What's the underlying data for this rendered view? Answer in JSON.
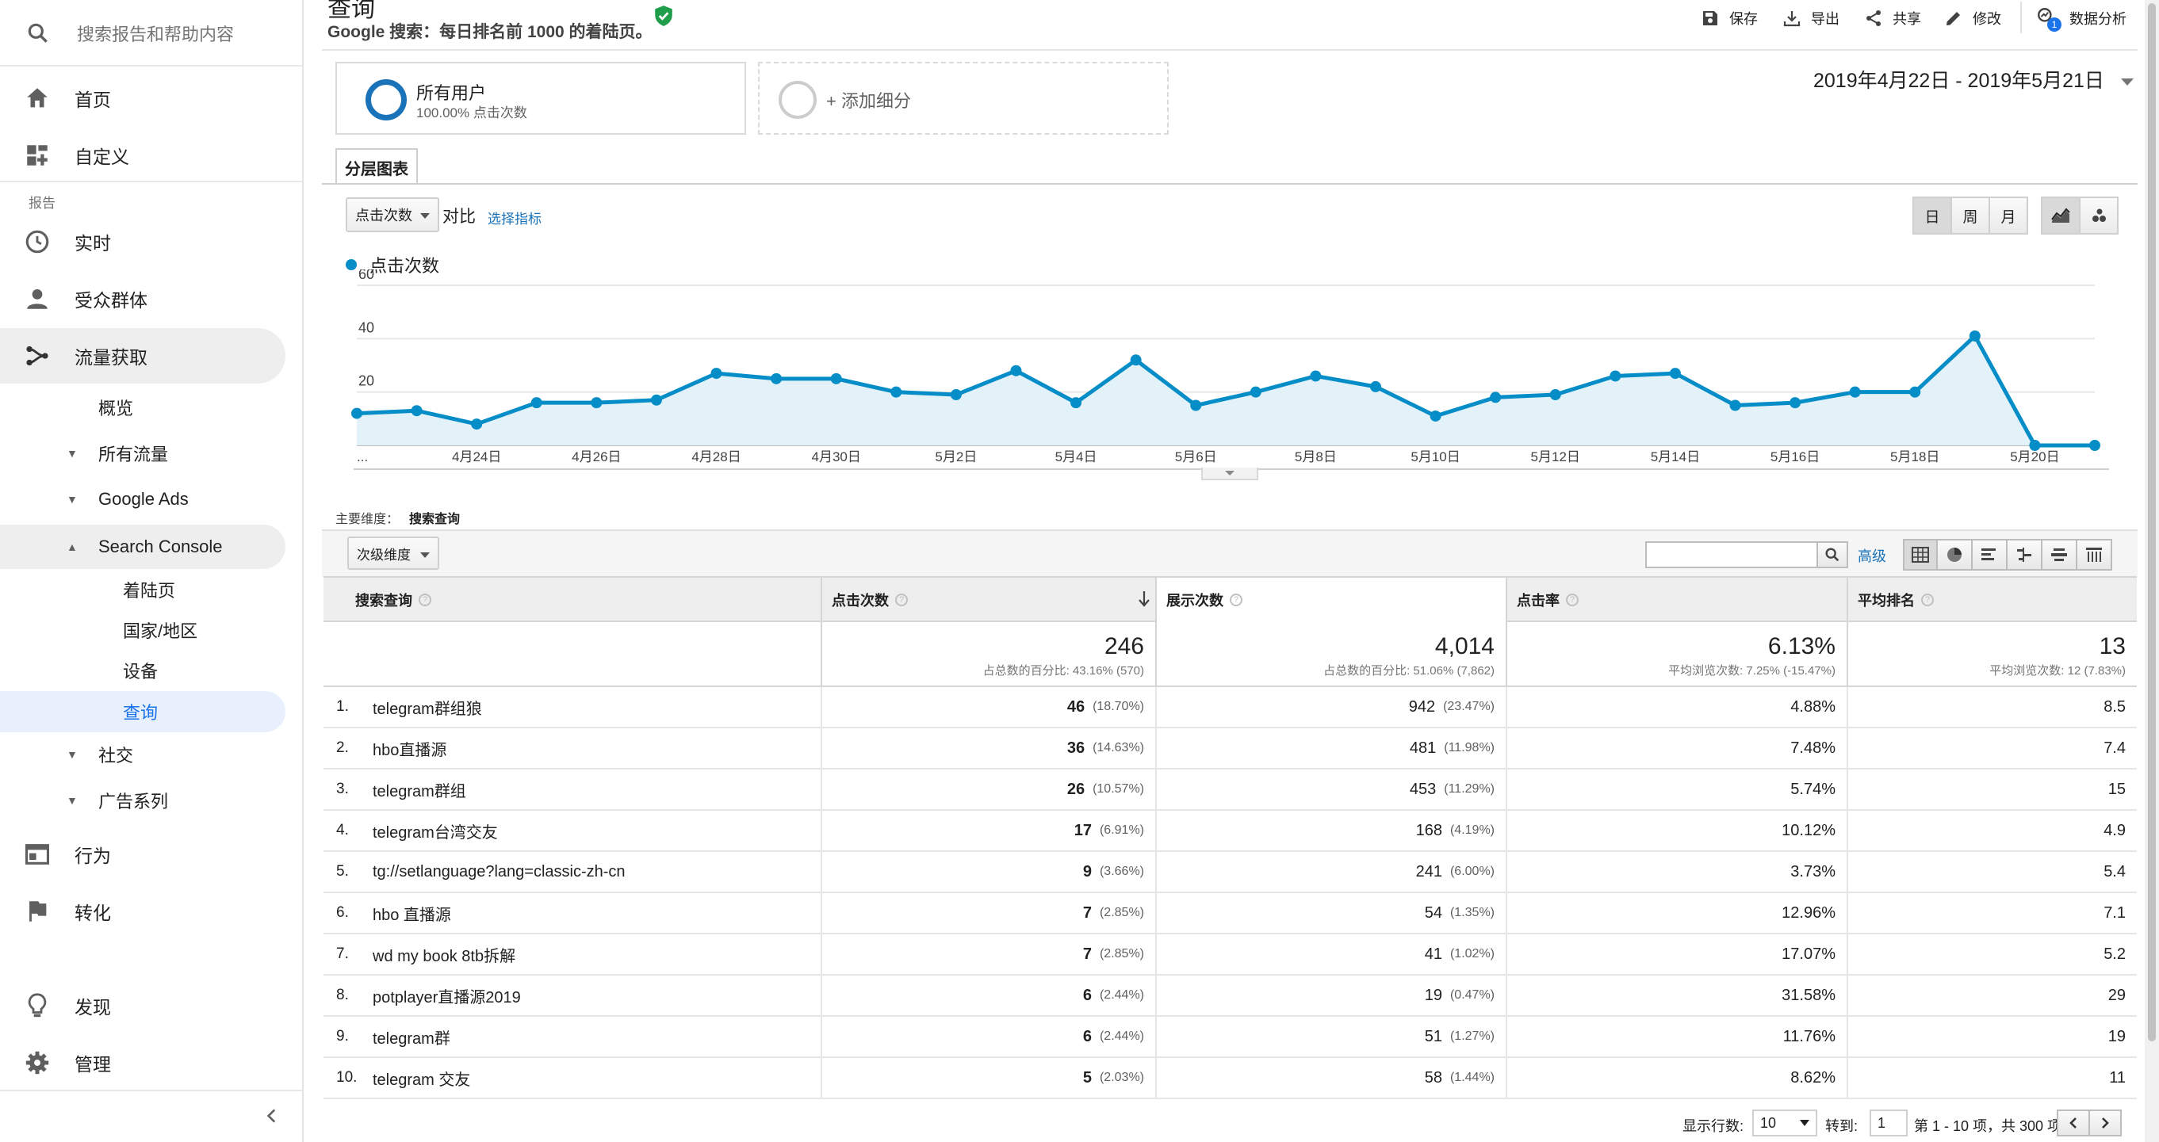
{
  "sidebar": {
    "search_placeholder": "搜索报告和帮助内容",
    "section_label": "报告",
    "nav": [
      {
        "label": "首页",
        "icon": "home-icon"
      },
      {
        "label": "自定义",
        "icon": "dashboard-add-icon"
      },
      {
        "label": "实时",
        "icon": "clock-icon"
      },
      {
        "label": "受众群体",
        "icon": "person-icon"
      },
      {
        "label": "流量获取",
        "icon": "acquisition-icon"
      },
      {
        "label": "行为",
        "icon": "behavior-icon"
      },
      {
        "label": "转化",
        "icon": "flag-icon"
      },
      {
        "label": "发现",
        "icon": "lightbulb-icon"
      },
      {
        "label": "管理",
        "icon": "gear-icon"
      }
    ],
    "acq_sub": {
      "overview": "概览",
      "all_traffic": "所有流量",
      "google_ads": "Google Ads",
      "search_console": "Search Console",
      "sc_items": [
        "着陆页",
        "国家/地区",
        "设备",
        "查询"
      ],
      "social": "社交",
      "campaigns": "广告系列"
    },
    "collapse_icon": "chevron-left-icon"
  },
  "header": {
    "title": "查询",
    "subtitle": "Google 搜索：每日排名前 1000 的着陆页。",
    "verified_icon": "check-shield-icon",
    "toolbar": {
      "save": "保存",
      "export": "导出",
      "share": "共享",
      "edit": "修改",
      "insights": "数据分析",
      "insights_badge": "1"
    }
  },
  "segments": {
    "all_users": "所有用户",
    "all_users_sub": "100.00% 点击次数",
    "add": "+ 添加细分"
  },
  "date_range": "2019年4月22日 - 2019年5月21日",
  "explorer": {
    "tab": "分层图表",
    "metric_select": "点击次数",
    "vs": "对比",
    "select_metric": "选择指标",
    "granularity": [
      "日",
      "周",
      "月"
    ],
    "legend": "点击次数"
  },
  "chart_data": {
    "type": "area",
    "series": [
      {
        "name": "点击次数",
        "values": [
          12,
          13,
          8,
          16,
          16,
          17,
          27,
          25,
          25,
          20,
          19,
          28,
          16,
          32,
          15,
          20,
          26,
          22,
          11,
          18,
          19,
          26,
          27,
          15,
          16,
          20,
          20,
          41,
          0,
          0
        ]
      }
    ],
    "x_tick_labels": [
      "...",
      "4月24日",
      "4月26日",
      "4月28日",
      "4月30日",
      "5月2日",
      "5月4日",
      "5月6日",
      "5月8日",
      "5月10日",
      "5月12日",
      "5月14日",
      "5月16日",
      "5月18日",
      "5月20日"
    ],
    "y_ticks": [
      20,
      40,
      60
    ],
    "ylim": [
      0,
      60
    ],
    "grid": true,
    "color": "#058dc7"
  },
  "dimension": {
    "primary_label": "主要维度：",
    "primary_value": "搜索查询",
    "secondary": "次级维度",
    "advanced": "高级"
  },
  "table": {
    "columns": [
      "搜索查询",
      "点击次数",
      "展示次数",
      "点击率",
      "平均排名"
    ],
    "totals": [
      {
        "big": "246",
        "small": "占总数的百分比: 43.16% (570)"
      },
      {
        "big": "4,014",
        "small": "占总数的百分比: 51.06% (7,862)"
      },
      {
        "big": "6.13%",
        "small": "平均浏览次数: 7.25% (-15.47%)"
      },
      {
        "big": "13",
        "small": "平均浏览次数: 12 (7.83%)"
      }
    ],
    "rows": [
      {
        "idx": "1.",
        "q": "telegram群组狼",
        "clicks": "46",
        "clicks_pct": "(18.70%)",
        "impr": "942",
        "impr_pct": "(23.47%)",
        "ctr": "4.88%",
        "pos": "8.5"
      },
      {
        "idx": "2.",
        "q": "hbo直播源",
        "clicks": "36",
        "clicks_pct": "(14.63%)",
        "impr": "481",
        "impr_pct": "(11.98%)",
        "ctr": "7.48%",
        "pos": "7.4"
      },
      {
        "idx": "3.",
        "q": "telegram群组",
        "clicks": "26",
        "clicks_pct": "(10.57%)",
        "impr": "453",
        "impr_pct": "(11.29%)",
        "ctr": "5.74%",
        "pos": "15"
      },
      {
        "idx": "4.",
        "q": "telegram台湾交友",
        "clicks": "17",
        "clicks_pct": "(6.91%)",
        "impr": "168",
        "impr_pct": "(4.19%)",
        "ctr": "10.12%",
        "pos": "4.9"
      },
      {
        "idx": "5.",
        "q": "tg://setlanguage?lang=classic-zh-cn",
        "clicks": "9",
        "clicks_pct": "(3.66%)",
        "impr": "241",
        "impr_pct": "(6.00%)",
        "ctr": "3.73%",
        "pos": "5.4"
      },
      {
        "idx": "6.",
        "q": "hbo 直播源",
        "clicks": "7",
        "clicks_pct": "(2.85%)",
        "impr": "54",
        "impr_pct": "(1.35%)",
        "ctr": "12.96%",
        "pos": "7.1"
      },
      {
        "idx": "7.",
        "q": "wd my book 8tb拆解",
        "clicks": "7",
        "clicks_pct": "(2.85%)",
        "impr": "41",
        "impr_pct": "(1.02%)",
        "ctr": "17.07%",
        "pos": "5.2"
      },
      {
        "idx": "8.",
        "q": "potplayer直播源2019",
        "clicks": "6",
        "clicks_pct": "(2.44%)",
        "impr": "19",
        "impr_pct": "(0.47%)",
        "ctr": "31.58%",
        "pos": "29"
      },
      {
        "idx": "9.",
        "q": "telegram群",
        "clicks": "6",
        "clicks_pct": "(2.44%)",
        "impr": "51",
        "impr_pct": "(1.27%)",
        "ctr": "11.76%",
        "pos": "19"
      },
      {
        "idx": "10.",
        "q": "telegram 交友",
        "clicks": "5",
        "clicks_pct": "(2.03%)",
        "impr": "58",
        "impr_pct": "(1.44%)",
        "ctr": "8.62%",
        "pos": "11"
      }
    ]
  },
  "pagination": {
    "rows_label": "显示行数:",
    "rows_value": "10",
    "goto_label": "转到:",
    "goto_value": "1",
    "range": "第 1 - 10 项，共 300 项"
  }
}
